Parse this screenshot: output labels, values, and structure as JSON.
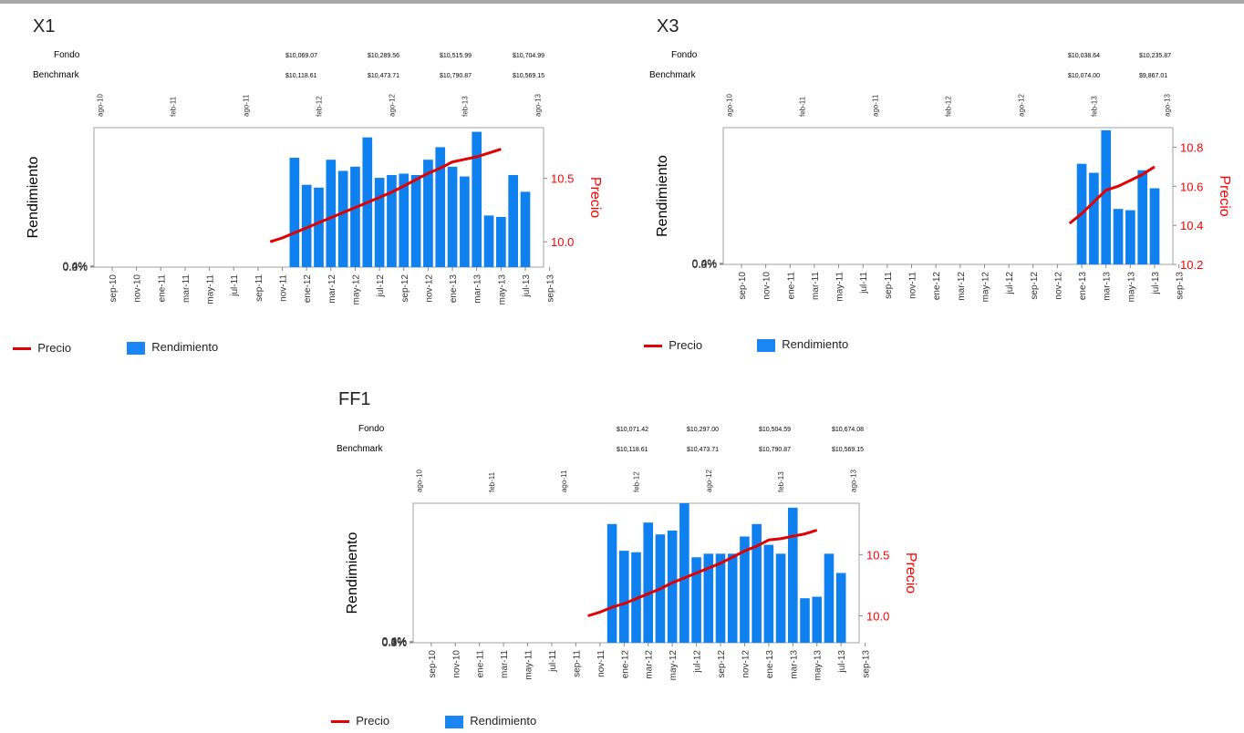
{
  "colors": {
    "bar": "#0f80f0",
    "line": "#e00000",
    "axis_right_text": "#ff0000"
  },
  "legend": {
    "line_label": "Precio",
    "bar_label": "Rendimiento"
  },
  "chart_data": [
    {
      "title": "X1",
      "type": "bar",
      "fondo_label": "Fondo",
      "benchmark_label": "Benchmark",
      "fondo_values": [
        "$10,069.07",
        "$10,289.56",
        "$10,515.99",
        "$10,704.99"
      ],
      "benchmark_values": [
        "$10,118.61",
        "$10,473.71",
        "$10,790.87",
        "$10,569.15"
      ],
      "top_ticks": [
        "ago-10",
        "feb-11",
        "ago-11",
        "feb-12",
        "ago-12",
        "feb-13",
        "ago-13"
      ],
      "ylabel": "Rendimiento",
      "y2label": "Precio",
      "yticks": [
        "0.0%",
        "0.2%",
        "0.4%"
      ],
      "ylim": [
        0,
        0.5
      ],
      "y2ticks": [
        "10.0",
        "10.5"
      ],
      "y2lim": [
        9.8,
        10.9
      ],
      "categories": [
        "sep-10",
        "nov-10",
        "ene-11",
        "mar-11",
        "may-11",
        "jul-11",
        "sep-11",
        "nov-11",
        "ene-12",
        "mar-12",
        "may-12",
        "jul-12",
        "sep-12",
        "nov-12",
        "ene-13",
        "mar-13",
        "may-13",
        "jul-13",
        "sep-13"
      ],
      "bars": [
        0.392,
        0.295,
        0.285,
        0.385,
        0.345,
        0.36,
        0.465,
        0.32,
        0.33,
        0.335,
        0.33,
        0.385,
        0.43,
        0.36,
        0.325,
        0.485,
        0.185,
        0.18,
        0.33,
        0.27
      ],
      "bars_start_month": 16,
      "price_start_month": 14,
      "price": [
        10.0,
        10.03,
        10.07,
        10.11,
        10.15,
        10.19,
        10.23,
        10.27,
        10.31,
        10.35,
        10.39,
        10.44,
        10.49,
        10.54,
        10.58,
        10.63,
        10.65,
        10.67,
        10.7,
        10.73
      ]
    },
    {
      "title": "X3",
      "type": "bar",
      "fondo_label": "Fondo",
      "benchmark_label": "Benchmark",
      "fondo_values": [
        "$10,038.64",
        "$10,235.87"
      ],
      "benchmark_values": [
        "$10,074.00",
        "$9,867.01"
      ],
      "top_ticks": [
        "ago-10",
        "feb-11",
        "ago-11",
        "feb-12",
        "ago-12",
        "feb-13",
        "ago-13"
      ],
      "ylabel": "Rendimiento",
      "y2label": "Precio",
      "yticks": [
        "0.0%",
        "0.2%",
        "0.4%"
      ],
      "ylim": [
        0,
        0.53
      ],
      "y2ticks": [
        "10.2",
        "10.4",
        "10.6",
        "10.8"
      ],
      "y2lim": [
        10.2,
        10.9
      ],
      "categories": [
        "sep-10",
        "nov-10",
        "ene-11",
        "mar-11",
        "may-11",
        "jul-11",
        "sep-11",
        "nov-11",
        "ene-12",
        "mar-12",
        "may-12",
        "jul-12",
        "sep-12",
        "nov-12",
        "ene-13",
        "mar-13",
        "may-13",
        "jul-13",
        "sep-13"
      ],
      "bars": [
        0.39,
        0.355,
        0.52,
        0.215,
        0.21,
        0.365,
        0.295
      ],
      "bars_start_month": 29,
      "price_start_month": 28,
      "price": [
        10.41,
        10.46,
        10.52,
        10.58,
        10.6,
        10.63,
        10.66,
        10.7
      ]
    },
    {
      "title": "FF1",
      "type": "bar",
      "fondo_label": "Fondo",
      "benchmark_label": "Benchmark",
      "fondo_values": [
        "$10,071.42",
        "$10,297.00",
        "$10,504.59",
        "$10,674.08"
      ],
      "benchmark_values": [
        "$10,118.61",
        "$10,473.71",
        "$10,790.87",
        "$10,569.15"
      ],
      "top_ticks": [
        "ago-10",
        "feb-11",
        "ago-11",
        "feb-12",
        "ago-12",
        "feb-13",
        "ago-13"
      ],
      "ylabel": "Rendimiento",
      "y2label": "Precio",
      "yticks": [
        "0.0%",
        "0.1%",
        "0.2%",
        "0.3%",
        "0.4%"
      ],
      "ylim": [
        0,
        0.47
      ],
      "y2ticks": [
        "10.0",
        "10.5"
      ],
      "y2lim": [
        9.78,
        10.92
      ],
      "categories": [
        "sep-10",
        "nov-10",
        "ene-11",
        "mar-11",
        "may-11",
        "jul-11",
        "sep-11",
        "nov-11",
        "ene-12",
        "mar-12",
        "may-12",
        "jul-12",
        "sep-12",
        "nov-12",
        "ene-13",
        "mar-13",
        "may-13",
        "jul-13",
        "sep-13"
      ],
      "bars": [
        0.4,
        0.31,
        0.305,
        0.405,
        0.365,
        0.378,
        0.47,
        0.288,
        0.3,
        0.3,
        0.3,
        0.358,
        0.4,
        0.33,
        0.3,
        0.455,
        0.15,
        0.155,
        0.3,
        0.235
      ],
      "bars_start_month": 16,
      "price_start_month": 14,
      "price": [
        10.0,
        10.03,
        10.07,
        10.1,
        10.14,
        10.18,
        10.22,
        10.27,
        10.31,
        10.35,
        10.39,
        10.43,
        10.48,
        10.53,
        10.57,
        10.62,
        10.63,
        10.65,
        10.67,
        10.7
      ]
    }
  ]
}
